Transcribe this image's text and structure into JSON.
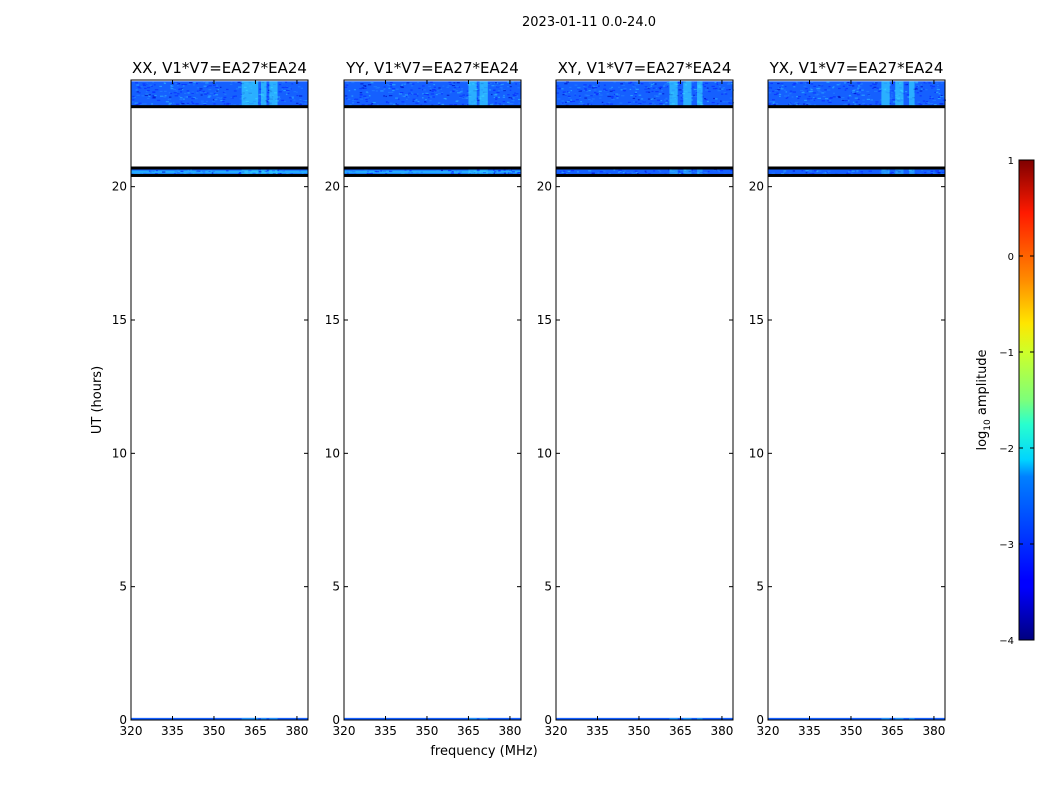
{
  "figure": {
    "suptitle": "2023-01-11 0.0-24.0",
    "ylabel": "UT (hours)",
    "xlabel": "frequency (MHz)",
    "colorbar_label_pre": "log",
    "colorbar_label_sub": "10",
    "colorbar_label_post": " amplitude",
    "colors": {
      "low": "#00008f",
      "mid": "#00d4ff",
      "high": "#800000",
      "band_base": "#1560ff",
      "band_bright": "#27b8ff",
      "spike": "#3cf0ff",
      "flag": "#000000"
    }
  },
  "chart_data": [
    {
      "type": "heatmap",
      "title": "XX, V1*V7=EA27*EA24",
      "xlim": [
        320,
        384
      ],
      "ylim": [
        0,
        24
      ],
      "xticks": [
        320,
        335,
        350,
        365,
        380
      ],
      "yticks": [
        0,
        5,
        10,
        15,
        20
      ],
      "data_bands": [
        [
          23.0,
          23.95
        ],
        [
          20.4,
          20.65
        ],
        [
          0.0,
          0.08
        ]
      ],
      "flag_lines": [
        23.0,
        20.7,
        20.42
      ],
      "bright_freq_ranges": [
        [
          360,
          366
        ],
        [
          367,
          369
        ],
        [
          370,
          373
        ]
      ],
      "bright_band_lines": [
        20.55
      ]
    },
    {
      "type": "heatmap",
      "title": "YY, V1*V7=EA27*EA24",
      "xlim": [
        320,
        384
      ],
      "ylim": [
        0,
        24
      ],
      "xticks": [
        320,
        335,
        350,
        365,
        380
      ],
      "yticks": [
        0,
        5,
        10,
        15,
        20
      ],
      "data_bands": [
        [
          23.0,
          23.95
        ],
        [
          20.4,
          20.65
        ],
        [
          0.0,
          0.08
        ]
      ],
      "flag_lines": [
        23.0,
        20.7,
        20.42
      ],
      "bright_freq_ranges": [
        [
          365,
          368
        ],
        [
          369,
          372
        ]
      ],
      "bright_band_lines": [
        20.55
      ]
    },
    {
      "type": "heatmap",
      "title": "XY, V1*V7=EA27*EA24",
      "xlim": [
        320,
        384
      ],
      "ylim": [
        0,
        24
      ],
      "xticks": [
        320,
        335,
        350,
        365,
        380
      ],
      "yticks": [
        0,
        5,
        10,
        15,
        20
      ],
      "data_bands": [
        [
          23.0,
          23.95
        ],
        [
          20.4,
          20.65
        ],
        [
          0.0,
          0.08
        ]
      ],
      "flag_lines": [
        23.0,
        20.7,
        20.42
      ],
      "bright_freq_ranges": [
        [
          361,
          364
        ],
        [
          366,
          369
        ],
        [
          371,
          373
        ]
      ],
      "bright_band_lines": []
    },
    {
      "type": "heatmap",
      "title": "YX, V1*V7=EA27*EA24",
      "xlim": [
        320,
        384
      ],
      "ylim": [
        0,
        24
      ],
      "xticks": [
        320,
        335,
        350,
        365,
        380
      ],
      "yticks": [
        0,
        5,
        10,
        15,
        20
      ],
      "data_bands": [
        [
          23.0,
          23.95
        ],
        [
          20.4,
          20.65
        ],
        [
          0.0,
          0.08
        ]
      ],
      "flag_lines": [
        23.0,
        20.7,
        20.42
      ],
      "bright_freq_ranges": [
        [
          361,
          364
        ],
        [
          366,
          369
        ],
        [
          371,
          373
        ]
      ],
      "bright_band_lines": []
    },
    {
      "type": "colorbar",
      "title": "",
      "range": [
        -4,
        1
      ],
      "ticks": [
        -4,
        -3,
        -2,
        -1,
        0,
        1
      ],
      "tick_labels": [
        "−4",
        "−3",
        "−2",
        "−1",
        "0",
        "1"
      ]
    }
  ]
}
